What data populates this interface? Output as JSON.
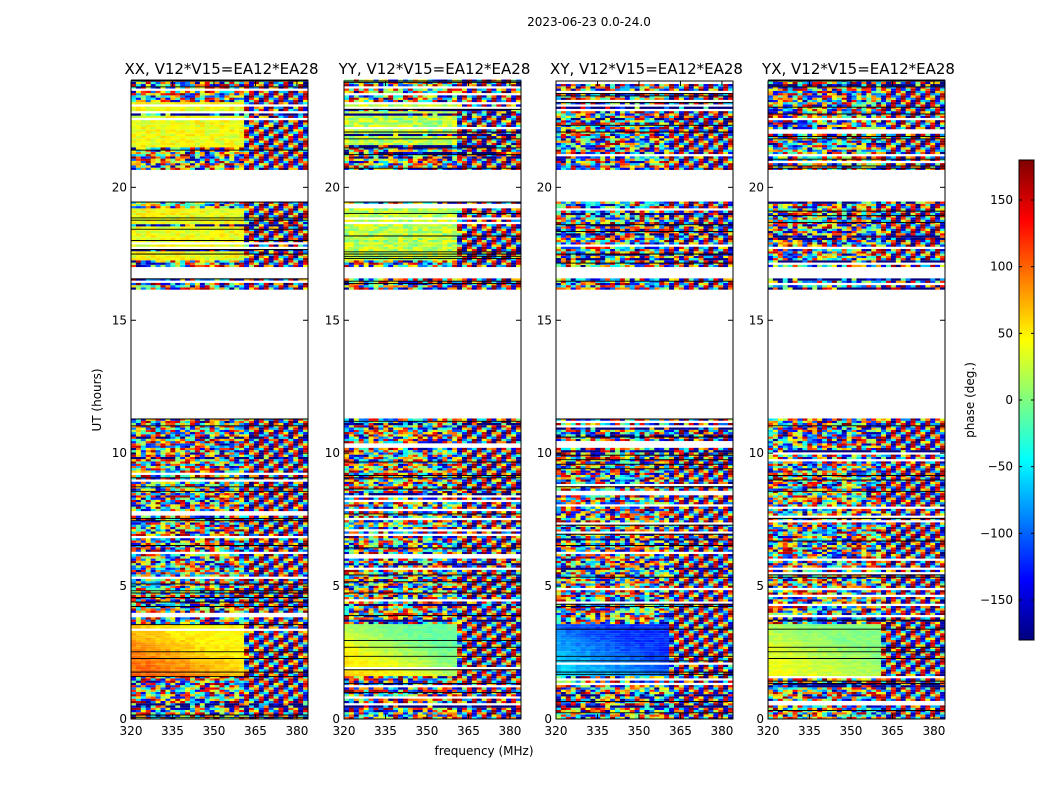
{
  "figure": {
    "suptitle": "2023-06-23 0.0-24.0",
    "xlabel": "frequency (MHz)",
    "ylabel": "UT (hours)"
  },
  "colorbar": {
    "label": "phase (deg.)",
    "range": [
      -180,
      180
    ],
    "ticks": [
      150,
      100,
      50,
      0,
      -50,
      -100,
      -150
    ],
    "tick_labels": [
      "150",
      "100",
      "50",
      "0",
      "−50",
      "−100",
      "−150"
    ],
    "colormap": [
      "#00007f",
      "#0000ff",
      "#007fff",
      "#00ffff",
      "#7fff7f",
      "#ffff00",
      "#ff7f00",
      "#ff0000",
      "#7f0000"
    ]
  },
  "chart_data": {
    "type": "heatmap",
    "xlim": [
      320,
      384
    ],
    "ylim": [
      0,
      24
    ],
    "xticks": [
      320,
      335,
      350,
      365,
      380
    ],
    "xtick_labels": [
      "320",
      "335",
      "350",
      "365",
      "380"
    ],
    "yticks": [
      0,
      5,
      10,
      15,
      20
    ],
    "ytick_labels": [
      "0",
      "5",
      "10",
      "15",
      "20"
    ],
    "panels": [
      {
        "title": "XX, V12*V15=EA12*EA28",
        "bright_phase": [
          45,
          100
        ],
        "upper_phase": [
          20,
          60
        ]
      },
      {
        "title": "YY, V12*V15=EA12*EA28",
        "bright_phase": [
          -10,
          60
        ],
        "upper_phase": [
          -10,
          50
        ]
      },
      {
        "title": "XY, V12*V15=EA12*EA28",
        "bright_phase": [
          -120,
          -60
        ],
        "upper_phase": null
      },
      {
        "title": "YX, V12*V15=EA12*EA28",
        "bright_phase": [
          0,
          40
        ],
        "upper_phase": null
      }
    ],
    "blank_intervals_hours": [
      [
        11.3,
        16.1
      ],
      [
        16.5,
        17.0
      ],
      [
        19.4,
        20.0
      ],
      [
        20.0,
        20.6
      ]
    ]
  }
}
